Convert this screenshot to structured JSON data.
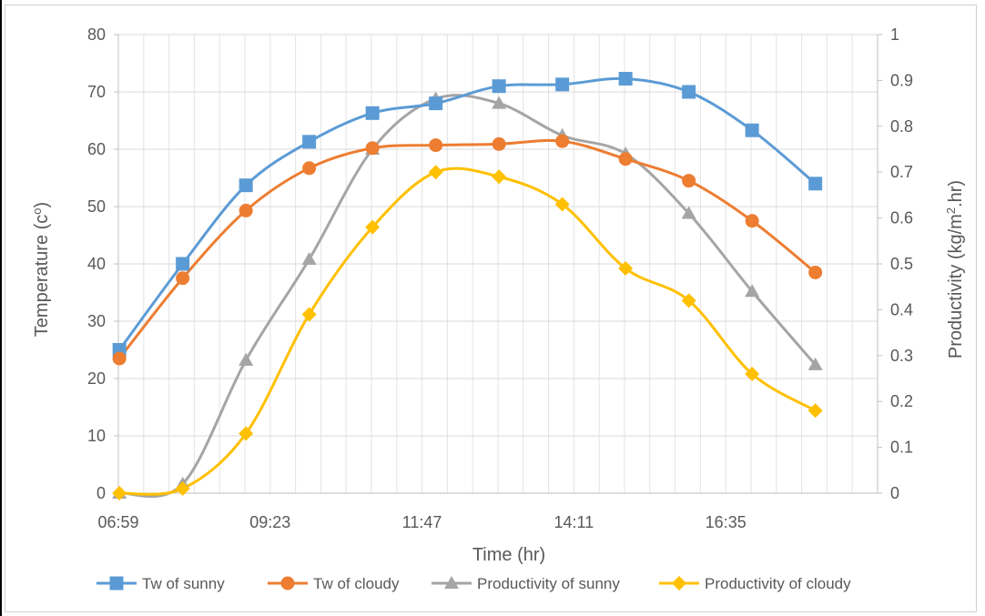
{
  "chart_data": {
    "type": "line",
    "title": "",
    "xlabel": "Time (hr)",
    "ylabel": "Temperature (c°)",
    "ylabel_main": "Temperature (c",
    "ylabel_sup": "o",
    "ylabel_close": ")",
    "y2label": "Productivity (kg/m².hr)",
    "y2label_main": "Productivity (kg/m",
    "y2label_sup": "2",
    "y2label_end": ".hr)",
    "x_tick_labels": [
      "06:59",
      "09:23",
      "11:47",
      "14:11",
      "16:35"
    ],
    "x_tick_minutes": [
      419,
      563,
      707,
      851,
      995
    ],
    "xlim_minutes": [
      419,
      1139
    ],
    "ylim": [
      0,
      80
    ],
    "y_ticks": [
      0,
      10,
      20,
      30,
      40,
      50,
      60,
      70,
      80
    ],
    "y2lim": [
      0,
      1
    ],
    "y2_ticks": [
      "0",
      "0.1",
      "0.2",
      "0.3",
      "0.4",
      "0.5",
      "0.6",
      "0.7",
      "0.8",
      "0.9",
      "1"
    ],
    "grid": true,
    "legend_position": "bottom",
    "x_times": [
      "07:00",
      "08:00",
      "09:00",
      "10:00",
      "11:00",
      "12:00",
      "13:00",
      "14:00",
      "15:00",
      "16:00",
      "17:00",
      "18:00"
    ],
    "x_minutes": [
      420,
      480,
      540,
      600,
      660,
      720,
      780,
      840,
      900,
      960,
      1020,
      1080
    ],
    "series": [
      {
        "name": "Tw of sunny",
        "axis": "left",
        "color": "#5B9BD5",
        "marker": "square",
        "values": [
          25,
          40,
          53.7,
          61.3,
          66.3,
          68,
          71,
          71.3,
          72.3,
          70,
          63.3,
          54
        ]
      },
      {
        "name": "Tw of cloudy",
        "axis": "left",
        "color": "#ED7D31",
        "marker": "circle",
        "values": [
          23.5,
          37.5,
          49.3,
          56.7,
          60.2,
          60.7,
          60.9,
          61.4,
          58.3,
          54.5,
          47.5,
          38.5
        ]
      },
      {
        "name": "Productivity of sunny",
        "axis": "right",
        "color": "#A5A5A5",
        "marker": "triangle",
        "values": [
          0,
          0.02,
          0.29,
          0.51,
          0.75,
          0.86,
          0.85,
          0.78,
          0.74,
          0.61,
          0.44,
          0.28
        ]
      },
      {
        "name": "Productivity of cloudy",
        "axis": "right",
        "color": "#FFC000",
        "marker": "diamond",
        "values": [
          0,
          0.01,
          0.13,
          0.39,
          0.58,
          0.7,
          0.69,
          0.63,
          0.49,
          0.42,
          0.26,
          0.18
        ]
      }
    ]
  }
}
